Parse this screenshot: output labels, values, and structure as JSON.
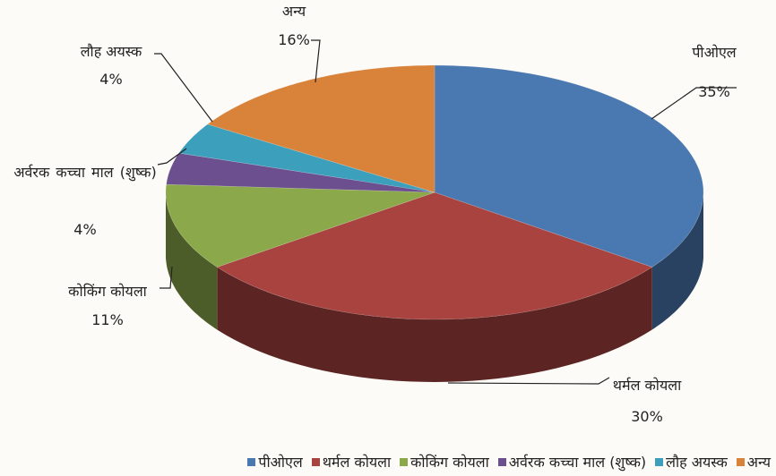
{
  "chart_data": {
    "type": "pie3d",
    "categories": [
      "पीओएल",
      "थर्मल कोयला",
      "कोकिंग कोयला",
      "अर्वरक कच्चा माल (शुष्क)",
      "लौह अयस्क",
      "अन्य"
    ],
    "values": [
      35,
      30,
      11,
      4,
      4,
      16
    ],
    "value_labels": [
      "35%",
      "30%",
      "11%",
      "4%",
      "4%",
      "16%"
    ],
    "colors": [
      "#4a78b0",
      "#a84340",
      "#8ba94a",
      "#6b4f8e",
      "#3c9fbc",
      "#d9823a"
    ],
    "legend": "bottom"
  }
}
